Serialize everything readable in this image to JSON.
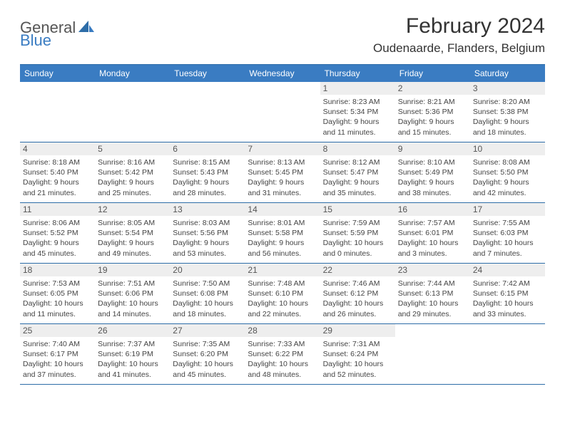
{
  "logo": {
    "text1": "General",
    "text2": "Blue"
  },
  "title": "February 2024",
  "location": "Oudenaarde, Flanders, Belgium",
  "colors": {
    "header_bg": "#3a7cc2",
    "header_text": "#ffffff",
    "border": "#2d6da8",
    "daynum_bg": "#eeeeee",
    "body_text": "#444444"
  },
  "daysOfWeek": [
    "Sunday",
    "Monday",
    "Tuesday",
    "Wednesday",
    "Thursday",
    "Friday",
    "Saturday"
  ],
  "weeks": [
    [
      null,
      null,
      null,
      null,
      {
        "n": "1",
        "sr": "8:23 AM",
        "ss": "5:34 PM",
        "dl": "9 hours and 11 minutes."
      },
      {
        "n": "2",
        "sr": "8:21 AM",
        "ss": "5:36 PM",
        "dl": "9 hours and 15 minutes."
      },
      {
        "n": "3",
        "sr": "8:20 AM",
        "ss": "5:38 PM",
        "dl": "9 hours and 18 minutes."
      }
    ],
    [
      {
        "n": "4",
        "sr": "8:18 AM",
        "ss": "5:40 PM",
        "dl": "9 hours and 21 minutes."
      },
      {
        "n": "5",
        "sr": "8:16 AM",
        "ss": "5:42 PM",
        "dl": "9 hours and 25 minutes."
      },
      {
        "n": "6",
        "sr": "8:15 AM",
        "ss": "5:43 PM",
        "dl": "9 hours and 28 minutes."
      },
      {
        "n": "7",
        "sr": "8:13 AM",
        "ss": "5:45 PM",
        "dl": "9 hours and 31 minutes."
      },
      {
        "n": "8",
        "sr": "8:12 AM",
        "ss": "5:47 PM",
        "dl": "9 hours and 35 minutes."
      },
      {
        "n": "9",
        "sr": "8:10 AM",
        "ss": "5:49 PM",
        "dl": "9 hours and 38 minutes."
      },
      {
        "n": "10",
        "sr": "8:08 AM",
        "ss": "5:50 PM",
        "dl": "9 hours and 42 minutes."
      }
    ],
    [
      {
        "n": "11",
        "sr": "8:06 AM",
        "ss": "5:52 PM",
        "dl": "9 hours and 45 minutes."
      },
      {
        "n": "12",
        "sr": "8:05 AM",
        "ss": "5:54 PM",
        "dl": "9 hours and 49 minutes."
      },
      {
        "n": "13",
        "sr": "8:03 AM",
        "ss": "5:56 PM",
        "dl": "9 hours and 53 minutes."
      },
      {
        "n": "14",
        "sr": "8:01 AM",
        "ss": "5:58 PM",
        "dl": "9 hours and 56 minutes."
      },
      {
        "n": "15",
        "sr": "7:59 AM",
        "ss": "5:59 PM",
        "dl": "10 hours and 0 minutes."
      },
      {
        "n": "16",
        "sr": "7:57 AM",
        "ss": "6:01 PM",
        "dl": "10 hours and 3 minutes."
      },
      {
        "n": "17",
        "sr": "7:55 AM",
        "ss": "6:03 PM",
        "dl": "10 hours and 7 minutes."
      }
    ],
    [
      {
        "n": "18",
        "sr": "7:53 AM",
        "ss": "6:05 PM",
        "dl": "10 hours and 11 minutes."
      },
      {
        "n": "19",
        "sr": "7:51 AM",
        "ss": "6:06 PM",
        "dl": "10 hours and 14 minutes."
      },
      {
        "n": "20",
        "sr": "7:50 AM",
        "ss": "6:08 PM",
        "dl": "10 hours and 18 minutes."
      },
      {
        "n": "21",
        "sr": "7:48 AM",
        "ss": "6:10 PM",
        "dl": "10 hours and 22 minutes."
      },
      {
        "n": "22",
        "sr": "7:46 AM",
        "ss": "6:12 PM",
        "dl": "10 hours and 26 minutes."
      },
      {
        "n": "23",
        "sr": "7:44 AM",
        "ss": "6:13 PM",
        "dl": "10 hours and 29 minutes."
      },
      {
        "n": "24",
        "sr": "7:42 AM",
        "ss": "6:15 PM",
        "dl": "10 hours and 33 minutes."
      }
    ],
    [
      {
        "n": "25",
        "sr": "7:40 AM",
        "ss": "6:17 PM",
        "dl": "10 hours and 37 minutes."
      },
      {
        "n": "26",
        "sr": "7:37 AM",
        "ss": "6:19 PM",
        "dl": "10 hours and 41 minutes."
      },
      {
        "n": "27",
        "sr": "7:35 AM",
        "ss": "6:20 PM",
        "dl": "10 hours and 45 minutes."
      },
      {
        "n": "28",
        "sr": "7:33 AM",
        "ss": "6:22 PM",
        "dl": "10 hours and 48 minutes."
      },
      {
        "n": "29",
        "sr": "7:31 AM",
        "ss": "6:24 PM",
        "dl": "10 hours and 52 minutes."
      },
      null,
      null
    ]
  ],
  "labels": {
    "sunrise": "Sunrise: ",
    "sunset": "Sunset: ",
    "daylight": "Daylight: "
  }
}
